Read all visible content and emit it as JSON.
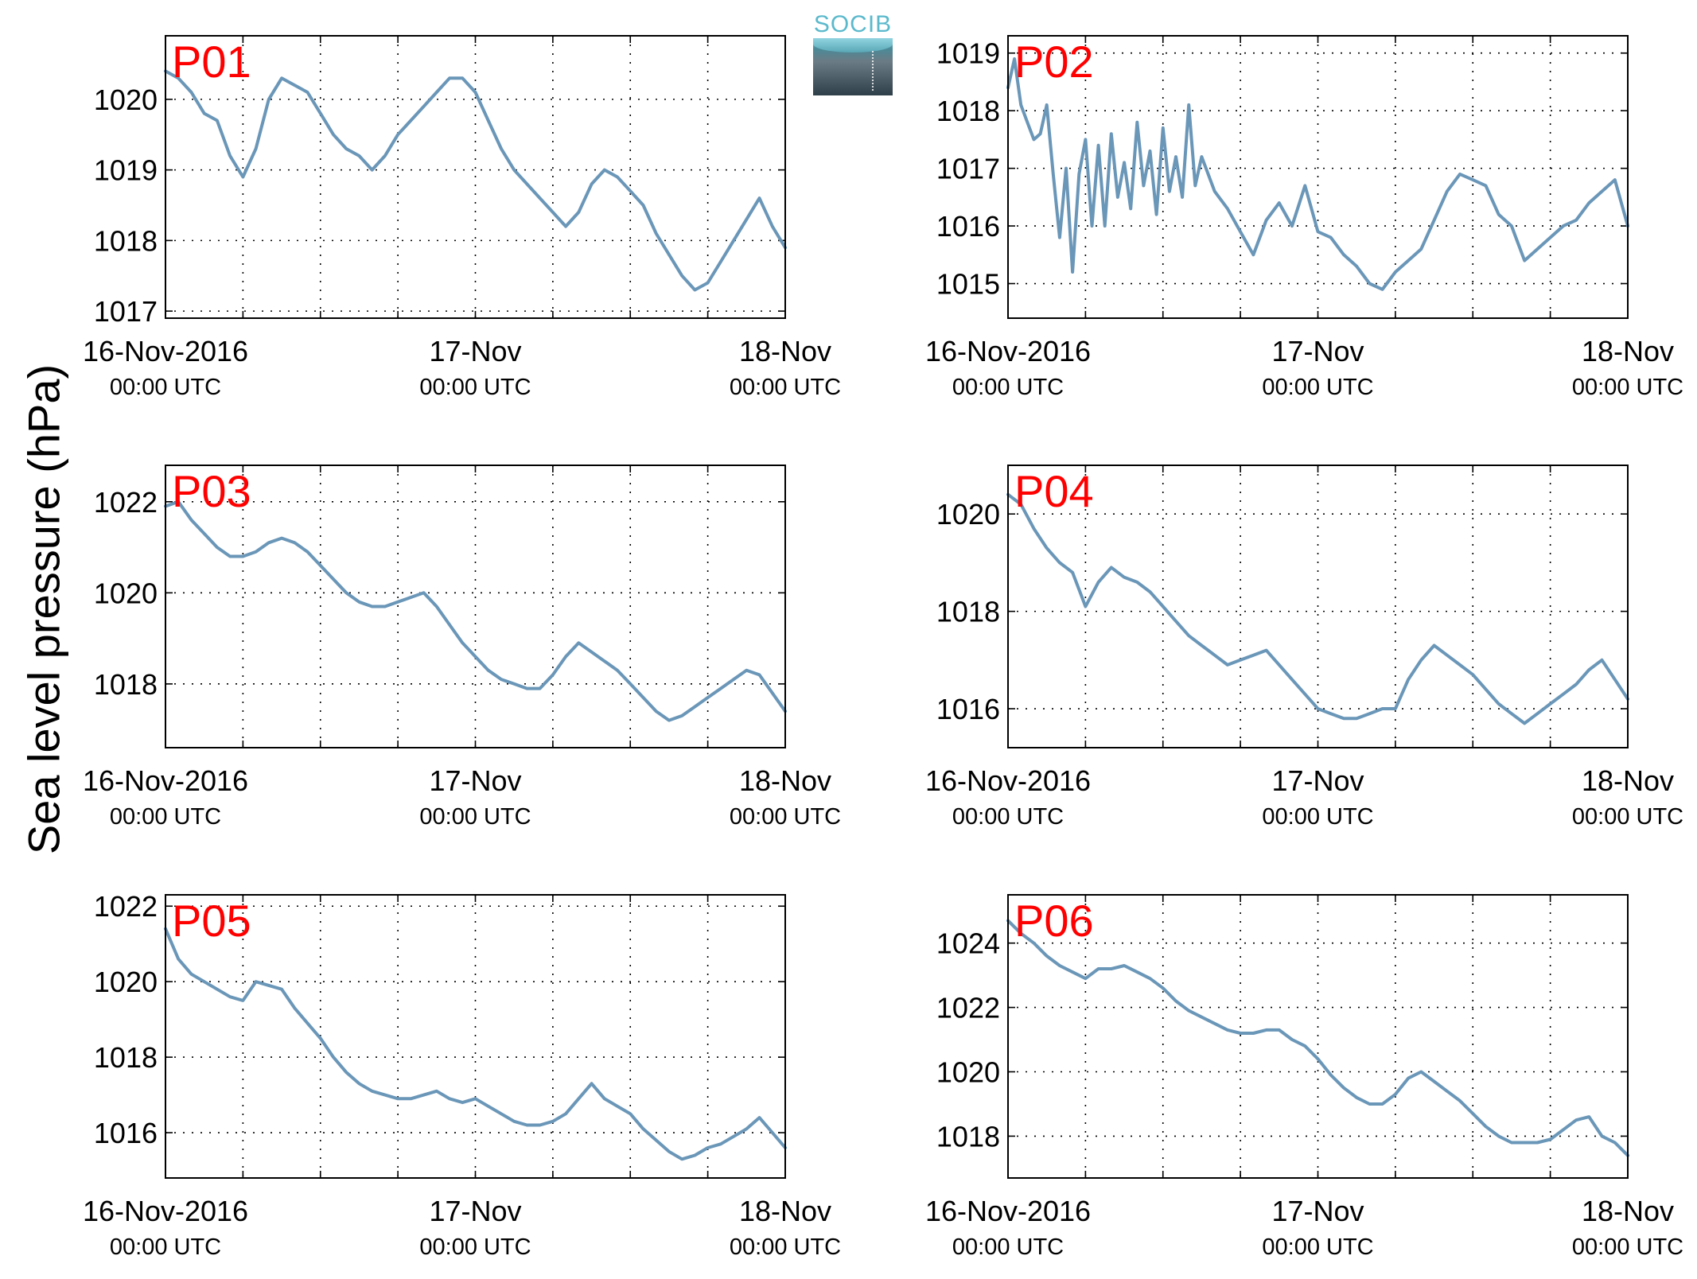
{
  "ylabel": "Sea level pressure (hPa)",
  "logo": {
    "text": "SOCIB"
  },
  "line_color": "#6a96b8",
  "label_color": "#ff0000",
  "chart_data": [
    {
      "type": "line",
      "label": "P01",
      "ylim": [
        1016.9,
        1020.9
      ],
      "yticks": [
        1017,
        1018,
        1019,
        1020
      ],
      "xticks": [
        {
          "pos": 0,
          "date": "16-Nov-2016",
          "time": "00:00 UTC"
        },
        {
          "pos": 24,
          "date": "17-Nov",
          "time": "00:00 UTC"
        },
        {
          "pos": 48,
          "date": "18-Nov",
          "time": "00:00 UTC"
        }
      ],
      "xlim": [
        0,
        48
      ],
      "grid": true,
      "x": [
        0,
        1,
        2,
        3,
        4,
        5,
        6,
        7,
        8,
        9,
        10,
        11,
        12,
        13,
        14,
        15,
        16,
        17,
        18,
        19,
        20,
        21,
        22,
        23,
        24,
        25,
        26,
        27,
        28,
        29,
        30,
        31,
        32,
        33,
        34,
        35,
        36,
        37,
        38,
        39,
        40,
        41,
        42,
        43,
        44,
        45,
        46,
        47,
        48
      ],
      "y": [
        1020.4,
        1020.3,
        1020.1,
        1019.8,
        1019.7,
        1019.2,
        1018.9,
        1019.3,
        1020.0,
        1020.3,
        1020.2,
        1020.1,
        1019.8,
        1019.5,
        1019.3,
        1019.2,
        1019.0,
        1019.2,
        1019.5,
        1019.7,
        1019.9,
        1020.1,
        1020.3,
        1020.3,
        1020.1,
        1019.7,
        1019.3,
        1019.0,
        1018.8,
        1018.6,
        1018.4,
        1018.2,
        1018.4,
        1018.8,
        1019.0,
        1018.9,
        1018.7,
        1018.5,
        1018.1,
        1017.8,
        1017.5,
        1017.3,
        1017.4,
        1017.7,
        1018.0,
        1018.3,
        1018.6,
        1018.2,
        1017.9
      ]
    },
    {
      "type": "line",
      "label": "P02",
      "ylim": [
        1014.4,
        1019.3
      ],
      "yticks": [
        1015,
        1016,
        1017,
        1018,
        1019
      ],
      "xticks": [
        {
          "pos": 0,
          "date": "16-Nov-2016",
          "time": "00:00 UTC"
        },
        {
          "pos": 24,
          "date": "17-Nov",
          "time": "00:00 UTC"
        },
        {
          "pos": 48,
          "date": "18-Nov",
          "time": "00:00 UTC"
        }
      ],
      "xlim": [
        0,
        48
      ],
      "grid": true,
      "x": [
        0,
        0.5,
        1,
        1.5,
        2,
        2.5,
        3,
        3.5,
        4,
        4.5,
        5,
        5.5,
        6,
        6.5,
        7,
        7.5,
        8,
        8.5,
        9,
        9.5,
        10,
        10.5,
        11,
        11.5,
        12,
        12.5,
        13,
        13.5,
        14,
        14.5,
        15,
        16,
        17,
        18,
        19,
        20,
        21,
        22,
        23,
        24,
        25,
        26,
        27,
        28,
        29,
        30,
        31,
        32,
        33,
        34,
        35,
        36,
        37,
        38,
        39,
        40,
        41,
        42,
        43,
        44,
        45,
        46,
        47,
        48
      ],
      "y": [
        1018.4,
        1018.9,
        1018.1,
        1017.8,
        1017.5,
        1017.6,
        1018.1,
        1016.9,
        1015.8,
        1017.0,
        1015.2,
        1016.9,
        1017.5,
        1016.0,
        1017.4,
        1016.0,
        1017.6,
        1016.5,
        1017.1,
        1016.3,
        1017.8,
        1016.7,
        1017.3,
        1016.2,
        1017.7,
        1016.6,
        1017.2,
        1016.5,
        1018.1,
        1016.7,
        1017.2,
        1016.6,
        1016.3,
        1015.9,
        1015.5,
        1016.1,
        1016.4,
        1016.0,
        1016.7,
        1015.9,
        1015.8,
        1015.5,
        1015.3,
        1015.0,
        1014.9,
        1015.2,
        1015.4,
        1015.6,
        1016.1,
        1016.6,
        1016.9,
        1016.8,
        1016.7,
        1016.2,
        1016.0,
        1015.4,
        1015.6,
        1015.8,
        1016.0,
        1016.1,
        1016.4,
        1016.6,
        1016.8,
        1016.0
      ]
    },
    {
      "type": "line",
      "label": "P03",
      "ylim": [
        1016.6,
        1022.8
      ],
      "yticks": [
        1018,
        1020,
        1022
      ],
      "xticks": [
        {
          "pos": 0,
          "date": "16-Nov-2016",
          "time": "00:00 UTC"
        },
        {
          "pos": 24,
          "date": "17-Nov",
          "time": "00:00 UTC"
        },
        {
          "pos": 48,
          "date": "18-Nov",
          "time": "00:00 UTC"
        }
      ],
      "xlim": [
        0,
        48
      ],
      "grid": true,
      "x": [
        0,
        1,
        2,
        3,
        4,
        5,
        6,
        7,
        8,
        9,
        10,
        11,
        12,
        13,
        14,
        15,
        16,
        17,
        18,
        19,
        20,
        21,
        22,
        23,
        24,
        25,
        26,
        27,
        28,
        29,
        30,
        31,
        32,
        33,
        34,
        35,
        36,
        37,
        38,
        39,
        40,
        41,
        42,
        43,
        44,
        45,
        46,
        47,
        48
      ],
      "y": [
        1021.9,
        1022.0,
        1021.6,
        1021.3,
        1021.0,
        1020.8,
        1020.8,
        1020.9,
        1021.1,
        1021.2,
        1021.1,
        1020.9,
        1020.6,
        1020.3,
        1020.0,
        1019.8,
        1019.7,
        1019.7,
        1019.8,
        1019.9,
        1020.0,
        1019.7,
        1019.3,
        1018.9,
        1018.6,
        1018.3,
        1018.1,
        1018.0,
        1017.9,
        1017.9,
        1018.2,
        1018.6,
        1018.9,
        1018.7,
        1018.5,
        1018.3,
        1018.0,
        1017.7,
        1017.4,
        1017.2,
        1017.3,
        1017.5,
        1017.7,
        1017.9,
        1018.1,
        1018.3,
        1018.2,
        1017.8,
        1017.4
      ]
    },
    {
      "type": "line",
      "label": "P04",
      "ylim": [
        1015.2,
        1021.0
      ],
      "yticks": [
        1016,
        1018,
        1020
      ],
      "xticks": [
        {
          "pos": 0,
          "date": "16-Nov-2016",
          "time": "00:00 UTC"
        },
        {
          "pos": 24,
          "date": "17-Nov",
          "time": "00:00 UTC"
        },
        {
          "pos": 48,
          "date": "18-Nov",
          "time": "00:00 UTC"
        }
      ],
      "xlim": [
        0,
        48
      ],
      "grid": true,
      "x": [
        0,
        1,
        2,
        3,
        4,
        5,
        6,
        7,
        8,
        9,
        10,
        11,
        12,
        13,
        14,
        15,
        16,
        17,
        18,
        19,
        20,
        21,
        22,
        23,
        24,
        25,
        26,
        27,
        28,
        29,
        30,
        31,
        32,
        33,
        34,
        35,
        36,
        37,
        38,
        39,
        40,
        41,
        42,
        43,
        44,
        45,
        46,
        47,
        48
      ],
      "y": [
        1020.4,
        1020.2,
        1019.7,
        1019.3,
        1019.0,
        1018.8,
        1018.1,
        1018.6,
        1018.9,
        1018.7,
        1018.6,
        1018.4,
        1018.1,
        1017.8,
        1017.5,
        1017.3,
        1017.1,
        1016.9,
        1017.0,
        1017.1,
        1017.2,
        1016.9,
        1016.6,
        1016.3,
        1016.0,
        1015.9,
        1015.8,
        1015.8,
        1015.9,
        1016.0,
        1016.0,
        1016.6,
        1017.0,
        1017.3,
        1017.1,
        1016.9,
        1016.7,
        1016.4,
        1016.1,
        1015.9,
        1015.7,
        1015.9,
        1016.1,
        1016.3,
        1016.5,
        1016.8,
        1017.0,
        1016.6,
        1016.2
      ]
    },
    {
      "type": "line",
      "label": "P05",
      "ylim": [
        1014.8,
        1022.3
      ],
      "yticks": [
        1016,
        1018,
        1020,
        1022
      ],
      "xticks": [
        {
          "pos": 0,
          "date": "16-Nov-2016",
          "time": "00:00 UTC"
        },
        {
          "pos": 24,
          "date": "17-Nov",
          "time": "00:00 UTC"
        },
        {
          "pos": 48,
          "date": "18-Nov",
          "time": "00:00 UTC"
        }
      ],
      "xlim": [
        0,
        48
      ],
      "grid": true,
      "x": [
        0,
        1,
        2,
        3,
        4,
        5,
        6,
        7,
        8,
        9,
        10,
        11,
        12,
        13,
        14,
        15,
        16,
        17,
        18,
        19,
        20,
        21,
        22,
        23,
        24,
        25,
        26,
        27,
        28,
        29,
        30,
        31,
        32,
        33,
        34,
        35,
        36,
        37,
        38,
        39,
        40,
        41,
        42,
        43,
        44,
        45,
        46,
        47,
        48
      ],
      "y": [
        1021.4,
        1020.6,
        1020.2,
        1020.0,
        1019.8,
        1019.6,
        1019.5,
        1020.0,
        1019.9,
        1019.8,
        1019.3,
        1018.9,
        1018.5,
        1018.0,
        1017.6,
        1017.3,
        1017.1,
        1017.0,
        1016.9,
        1016.9,
        1017.0,
        1017.1,
        1016.9,
        1016.8,
        1016.9,
        1016.7,
        1016.5,
        1016.3,
        1016.2,
        1016.2,
        1016.3,
        1016.5,
        1016.9,
        1017.3,
        1016.9,
        1016.7,
        1016.5,
        1016.1,
        1015.8,
        1015.5,
        1015.3,
        1015.4,
        1015.6,
        1015.7,
        1015.9,
        1016.1,
        1016.4,
        1016.0,
        1015.6
      ]
    },
    {
      "type": "line",
      "label": "P06",
      "ylim": [
        1016.7,
        1025.5
      ],
      "yticks": [
        1018,
        1020,
        1022,
        1024
      ],
      "xticks": [
        {
          "pos": 0,
          "date": "16-Nov-2016",
          "time": "00:00 UTC"
        },
        {
          "pos": 24,
          "date": "17-Nov",
          "time": "00:00 UTC"
        },
        {
          "pos": 48,
          "date": "18-Nov",
          "time": "00:00 UTC"
        }
      ],
      "xlim": [
        0,
        48
      ],
      "grid": true,
      "x": [
        0,
        1,
        2,
        3,
        4,
        5,
        6,
        7,
        8,
        9,
        10,
        11,
        12,
        13,
        14,
        15,
        16,
        17,
        18,
        19,
        20,
        21,
        22,
        23,
        24,
        25,
        26,
        27,
        28,
        29,
        30,
        31,
        32,
        33,
        34,
        35,
        36,
        37,
        38,
        39,
        40,
        41,
        42,
        43,
        44,
        45,
        46,
        47,
        48
      ],
      "y": [
        1024.7,
        1024.3,
        1024.0,
        1023.6,
        1023.3,
        1023.1,
        1022.9,
        1023.2,
        1023.2,
        1023.3,
        1023.1,
        1022.9,
        1022.6,
        1022.2,
        1021.9,
        1021.7,
        1021.5,
        1021.3,
        1021.2,
        1021.2,
        1021.3,
        1021.3,
        1021.0,
        1020.8,
        1020.4,
        1019.9,
        1019.5,
        1019.2,
        1019.0,
        1019.0,
        1019.3,
        1019.8,
        1020.0,
        1019.7,
        1019.4,
        1019.1,
        1018.7,
        1018.3,
        1018.0,
        1017.8,
        1017.8,
        1017.8,
        1017.9,
        1018.2,
        1018.5,
        1018.6,
        1018.0,
        1017.8,
        1017.4
      ]
    }
  ]
}
